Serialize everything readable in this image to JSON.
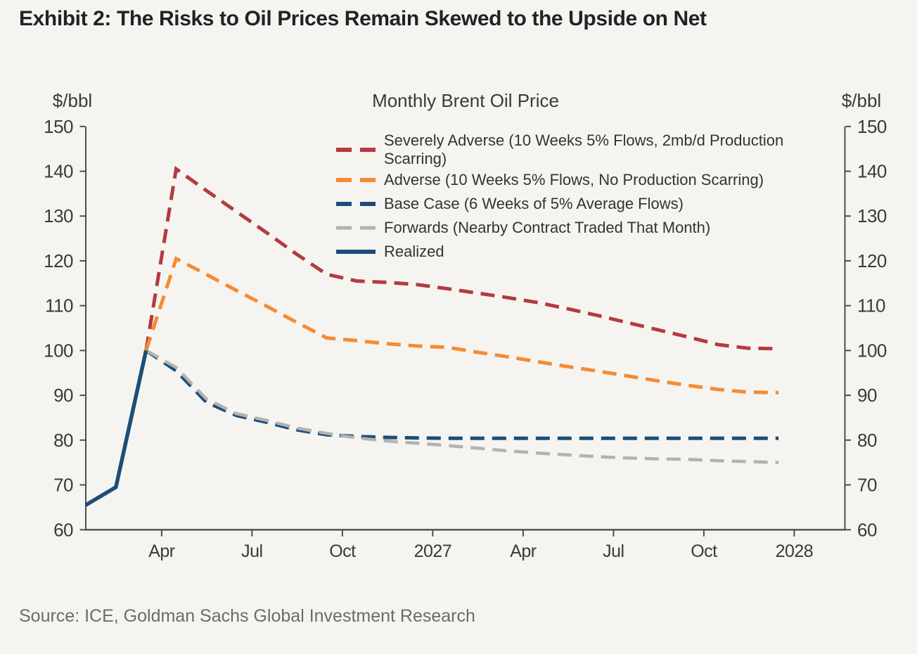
{
  "header": {
    "title": "Exhibit 2: The Risks to Oil Prices Remain Skewed to the Upside on Net"
  },
  "footer": {
    "source": "Source: ICE, Goldman Sachs Global Investment Research"
  },
  "colors": {
    "severely_adverse": "#b43a41",
    "adverse": "#f58b33",
    "base_case": "#1b4e79",
    "forwards": "#b2b2b2",
    "realized": "#1b4e79",
    "axis": "#4d4d4f",
    "background": "#f6f4f0"
  },
  "chart_data": {
    "type": "line",
    "title": "Monthly Brent Oil Price",
    "y_axis": {
      "unit_left": "$/bbl",
      "unit_right": "$/bbl",
      "min": 60,
      "max": 150,
      "tick_step": 10,
      "ticks": [
        150,
        140,
        130,
        120,
        110,
        100,
        90,
        80,
        70,
        60
      ]
    },
    "x_axis": {
      "tick_labels": [
        "Apr",
        "Jul",
        "Oct",
        "2027",
        "Apr",
        "Jul",
        "Oct",
        "2028"
      ],
      "months": [
        "Jan 2026",
        "Feb 2026",
        "Mar 2026",
        "Apr 2026",
        "May 2026",
        "Jun 2026",
        "Jul 2026",
        "Aug 2026",
        "Sep 2026",
        "Oct 2026",
        "Nov 2026",
        "Dec 2026",
        "Jan 2027",
        "Feb 2027",
        "Mar 2027",
        "Apr 2027",
        "May 2027",
        "Jun 2027",
        "Jul 2027",
        "Aug 2027",
        "Sep 2027",
        "Oct 2027",
        "Nov 2027",
        "Dec 2027"
      ]
    },
    "legend_position": "top-center-inside",
    "grid": false,
    "series": [
      {
        "name": "Severely Adverse (10 Weeks 5% Flows, 2mb/d Production Scarring)",
        "style": "dashed",
        "color_key": "severely_adverse",
        "values": [
          null,
          null,
          100,
          140.5,
          135.7,
          131,
          126.3,
          121.5,
          117,
          115.5,
          115.2,
          114.7,
          113.8,
          112.8,
          111.8,
          110.7,
          109.3,
          107.8,
          106.2,
          104.6,
          103,
          101.3,
          100.5,
          100.4
        ]
      },
      {
        "name": "Adverse (10 Weeks 5% Flows, No Production Scarring)",
        "style": "dashed",
        "color_key": "adverse",
        "values": [
          null,
          null,
          100,
          120.5,
          117,
          113.4,
          109.9,
          106.3,
          102.8,
          102.2,
          101.5,
          101,
          100.7,
          99.6,
          98.6,
          97.5,
          96.4,
          95.4,
          94.3,
          93.2,
          92.2,
          91.3,
          90.7,
          90.6
        ]
      },
      {
        "name": "Base Case (6 Weeks of 5% Average Flows)",
        "style": "dashed",
        "color_key": "base_case",
        "values": [
          null,
          null,
          100,
          95.5,
          88.5,
          85.5,
          84,
          82.3,
          81.2,
          80.8,
          80.6,
          80.5,
          80.4,
          80.4,
          80.4,
          80.4,
          80.4,
          80.4,
          80.4,
          80.4,
          80.4,
          80.4,
          80.4,
          80.4
        ]
      },
      {
        "name": "Forwards (Nearby Contract Traded That Month)",
        "style": "dashed",
        "color_key": "forwards",
        "values": [
          null,
          null,
          100,
          96.2,
          89.2,
          85.9,
          84.4,
          82.7,
          81.5,
          80.5,
          79.8,
          79.3,
          78.8,
          78.2,
          77.6,
          77.1,
          76.7,
          76.3,
          76.0,
          75.8,
          75.7,
          75.4,
          75.2,
          75.0
        ]
      },
      {
        "name": "Realized",
        "style": "solid",
        "color_key": "realized",
        "values": [
          65.5,
          69.5,
          100,
          null,
          null,
          null,
          null,
          null,
          null,
          null,
          null,
          null,
          null,
          null,
          null,
          null,
          null,
          null,
          null,
          null,
          null,
          null,
          null,
          null
        ]
      }
    ]
  }
}
